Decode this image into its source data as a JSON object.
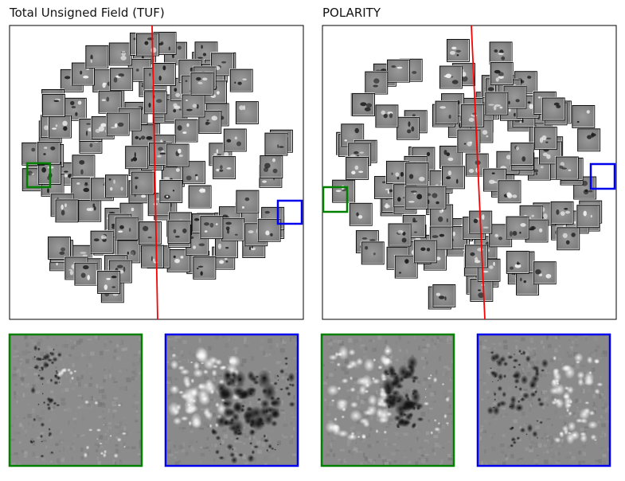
{
  "figure": {
    "panels": [
      {
        "title": "Total Unsigned Field (TUF)"
      },
      {
        "title": "POLARITY"
      }
    ],
    "highlight_colors": {
      "green": "#008000",
      "blue": "#0000ee"
    },
    "trend_line_color": "#ff0000",
    "patch_style": "grayscale magnetogram thumbnails",
    "zoom_panels": [
      {
        "source": "TUF",
        "frame": "green",
        "content": "sparse dark speckles, faint bright flecks"
      },
      {
        "source": "TUF",
        "frame": "blue",
        "content": "bright plage left, dark cluster center"
      },
      {
        "source": "POLARITY",
        "frame": "green",
        "content": "bright region left, dark spot center"
      },
      {
        "source": "POLARITY",
        "frame": "blue",
        "content": "dark speckles left, bright streaks right"
      }
    ]
  }
}
